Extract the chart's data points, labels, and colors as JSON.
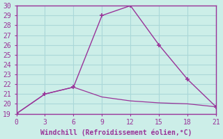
{
  "line1_x": [
    0,
    3,
    6,
    9,
    12,
    15,
    18,
    21
  ],
  "line1_y": [
    19,
    21,
    21.7,
    29,
    30,
    26,
    22.5,
    19.7
  ],
  "line2_x": [
    0,
    3,
    6,
    9,
    12,
    15,
    18,
    21
  ],
  "line2_y": [
    19,
    21,
    21.7,
    20.7,
    20.3,
    20.1,
    20.0,
    19.7
  ],
  "line_color": "#993399",
  "bg_color": "#cceee8",
  "grid_color": "#aad8d8",
  "border_color": "#993399",
  "xlabel": "Windchill (Refroidissement éolien,°C)",
  "xlim": [
    0,
    21
  ],
  "ylim": [
    19,
    30
  ],
  "xticks": [
    0,
    3,
    6,
    9,
    12,
    15,
    18,
    21
  ],
  "yticks": [
    19,
    20,
    21,
    22,
    23,
    24,
    25,
    26,
    27,
    28,
    29,
    30
  ],
  "marker": "+"
}
